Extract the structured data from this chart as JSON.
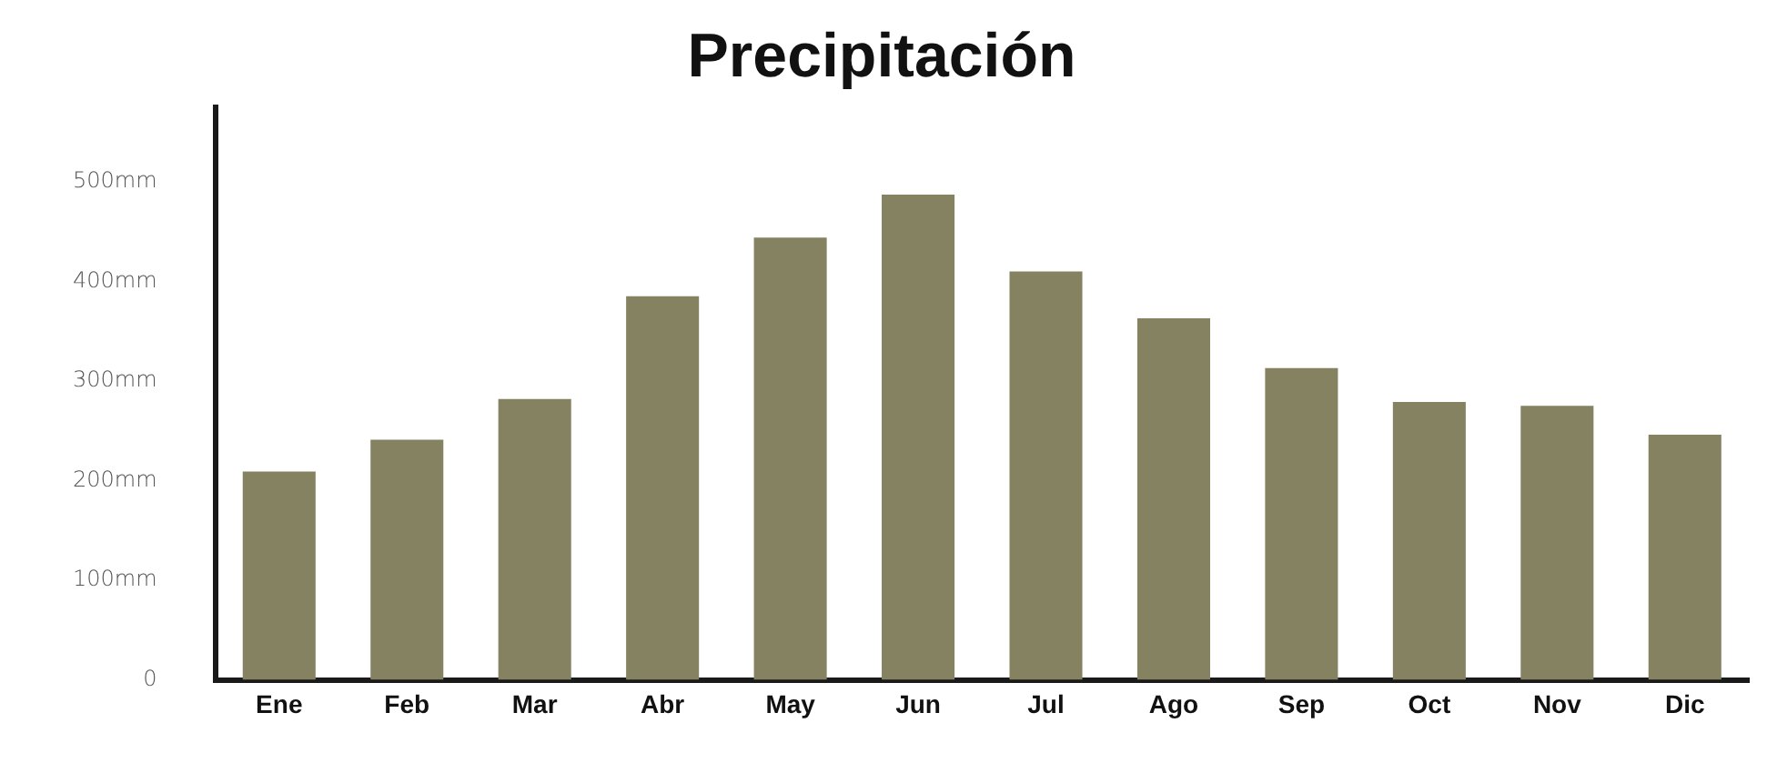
{
  "chart_data": {
    "type": "bar",
    "title": "Precipitación",
    "categories": [
      "Ene",
      "Feb",
      "Mar",
      "Abr",
      "May",
      "Jun",
      "Jul",
      "Ago",
      "Sep",
      "Oct",
      "Nov",
      "Dic"
    ],
    "values": [
      209,
      241,
      282,
      385,
      444,
      487,
      410,
      363,
      313,
      279,
      275,
      246
    ],
    "color": "#858261",
    "ylim": [
      0,
      575
    ],
    "yticks": [
      0,
      {
        "value": 100,
        "label": "100mm"
      },
      {
        "value": 200,
        "label": "200mm"
      },
      {
        "value": 300,
        "label": "300mm"
      },
      {
        "value": 400,
        "label": "400mm"
      },
      {
        "value": 500,
        "label": "500mm"
      }
    ],
    "grid": false,
    "legend": false
  }
}
